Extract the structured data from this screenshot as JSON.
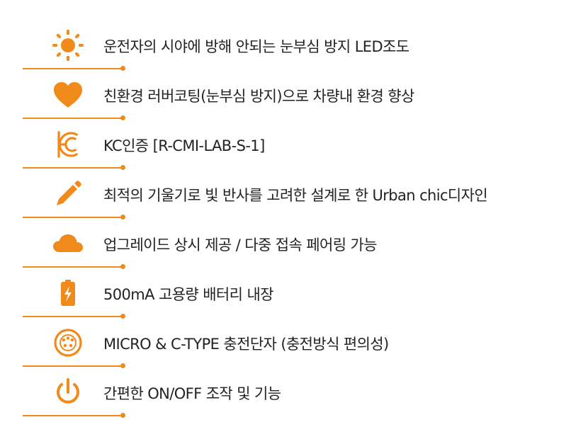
{
  "colors": {
    "accent": "#f08a1a",
    "text": "#222222",
    "background": "#ffffff"
  },
  "features": [
    {
      "icon": "sun-icon",
      "text": "운전자의 시야에 방해 안되는 눈부심 방지 LED조도"
    },
    {
      "icon": "heart-icon",
      "text": "친환경 러버코팅(눈부심 방지)으로 차량내 환경 향상"
    },
    {
      "icon": "kc-mark-icon",
      "text": "KC인증 [R-CMI-LAB-S-1]"
    },
    {
      "icon": "pencil-icon",
      "text": "최적의 기울기로 빛 반사를 고려한 설계로 한 Urban chic디자인"
    },
    {
      "icon": "cloud-icon",
      "text": "업그레이드 상시 제공 / 다중 접속 페어링 가능"
    },
    {
      "icon": "battery-icon",
      "text": "500mA 고용량 배터리 내장"
    },
    {
      "icon": "connector-icon",
      "text": "MICRO & C-TYPE 충전단자 (충전방식 편의성)"
    },
    {
      "icon": "power-icon",
      "text": "간편한 ON/OFF 조작 및 기능"
    }
  ]
}
